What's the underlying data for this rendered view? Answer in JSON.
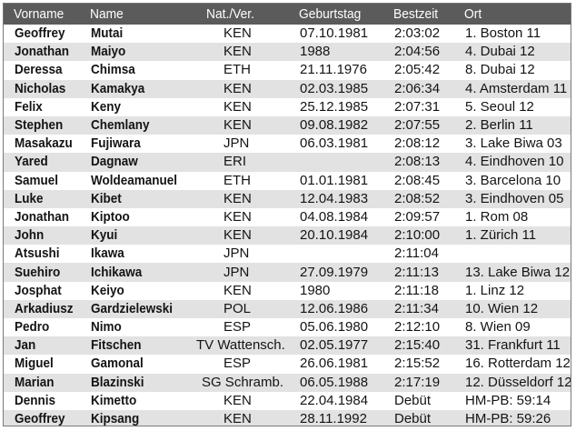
{
  "table": {
    "headers": {
      "vorname": "Vorname",
      "name": "Name",
      "nat": "Nat./Ver.",
      "geburtstag": "Geburtstag",
      "bestzeit": "Bestzeit",
      "ort": "Ort"
    },
    "rows": [
      {
        "vorname": "Geoffrey",
        "name": "Mutai",
        "nat": "KEN",
        "geburtstag": "07.10.1981",
        "bestzeit": "2:03:02",
        "ort": "1. Boston 11"
      },
      {
        "vorname": "Jonathan",
        "name": "Maiyo",
        "nat": "KEN",
        "geburtstag": "1988",
        "bestzeit": "2:04:56",
        "ort": "4. Dubai 12"
      },
      {
        "vorname": "Deressa",
        "name": "Chimsa",
        "nat": "ETH",
        "geburtstag": "21.11.1976",
        "bestzeit": "2:05:42",
        "ort": "8. Dubai 12"
      },
      {
        "vorname": "Nicholas",
        "name": "Kamakya",
        "nat": "KEN",
        "geburtstag": "02.03.1985",
        "bestzeit": "2:06:34",
        "ort": "4. Amsterdam 11"
      },
      {
        "vorname": "Felix",
        "name": "Keny",
        "nat": "KEN",
        "geburtstag": "25.12.1985",
        "bestzeit": "2:07:31",
        "ort": "5. Seoul 12"
      },
      {
        "vorname": "Stephen",
        "name": "Chemlany",
        "nat": "KEN",
        "geburtstag": "09.08.1982",
        "bestzeit": "2:07:55",
        "ort": "2. Berlin 11"
      },
      {
        "vorname": "Masakazu",
        "name": "Fujiwara",
        "nat": "JPN",
        "geburtstag": "06.03.1981",
        "bestzeit": "2:08:12",
        "ort": "3. Lake Biwa 03"
      },
      {
        "vorname": "Yared",
        "name": "Dagnaw",
        "nat": "ERI",
        "geburtstag": "",
        "bestzeit": "2:08:13",
        "ort": "4. Eindhoven 10"
      },
      {
        "vorname": "Samuel",
        "name": "Woldeamanuel",
        "nat": "ETH",
        "geburtstag": "01.01.1981",
        "bestzeit": "2:08:45",
        "ort": "3. Barcelona 10"
      },
      {
        "vorname": "Luke",
        "name": "Kibet",
        "nat": "KEN",
        "geburtstag": "12.04.1983",
        "bestzeit": "2:08:52",
        "ort": "3. Eindhoven 05"
      },
      {
        "vorname": "Jonathan",
        "name": "Kiptoo",
        "nat": "KEN",
        "geburtstag": "04.08.1984",
        "bestzeit": "2:09:57",
        "ort": "1. Rom 08"
      },
      {
        "vorname": "John",
        "name": "Kyui",
        "nat": "KEN",
        "geburtstag": "20.10.1984",
        "bestzeit": "2:10:00",
        "ort": "1. Zürich 11"
      },
      {
        "vorname": "Atsushi",
        "name": "Ikawa",
        "nat": "JPN",
        "geburtstag": "",
        "bestzeit": "2:11:04",
        "ort": ""
      },
      {
        "vorname": "Suehiro",
        "name": "Ichikawa",
        "nat": "JPN",
        "geburtstag": "27.09.1979",
        "bestzeit": "2:11:13",
        "ort": "13. Lake Biwa 12"
      },
      {
        "vorname": "Josphat",
        "name": "Keiyo",
        "nat": "KEN",
        "geburtstag": "1980",
        "bestzeit": "2:11:18",
        "ort": "1. Linz 12"
      },
      {
        "vorname": "Arkadiusz",
        "name": "Gardzielewski",
        "nat": "POL",
        "geburtstag": "12.06.1986",
        "bestzeit": "2:11:34",
        "ort": "10. Wien 12"
      },
      {
        "vorname": "Pedro",
        "name": "Nimo",
        "nat": "ESP",
        "geburtstag": "05.06.1980",
        "bestzeit": "2:12:10",
        "ort": "8. Wien 09"
      },
      {
        "vorname": "Jan",
        "name": "Fitschen",
        "nat": "TV Wattensch.",
        "geburtstag": "02.05.1977",
        "bestzeit": "2:15:40",
        "ort": "31. Frankfurt 11"
      },
      {
        "vorname": "Miguel",
        "name": "Gamonal",
        "nat": "ESP",
        "geburtstag": "26.06.1981",
        "bestzeit": "2:15:52",
        "ort": "16. Rotterdam 12"
      },
      {
        "vorname": "Marian",
        "name": "Blazinski",
        "nat": "SG Schramb.",
        "geburtstag": "06.05.1988",
        "bestzeit": "2:17:19",
        "ort": "12. Düsseldorf 12"
      },
      {
        "vorname": "Dennis",
        "name": "Kimetto",
        "nat": "KEN",
        "geburtstag": "22.04.1984",
        "bestzeit": "Debüt",
        "ort": "HM-PB: 59:14"
      },
      {
        "vorname": "Geoffrey",
        "name": "Kipsang",
        "nat": "KEN",
        "geburtstag": "28.11.1992",
        "bestzeit": "Debüt",
        "ort": "HM-PB: 59:26"
      }
    ]
  },
  "colors": {
    "header_bg": "#5b5b5b",
    "header_text": "#ffffff",
    "stripe": "#e2e2e2",
    "text": "#141414"
  }
}
